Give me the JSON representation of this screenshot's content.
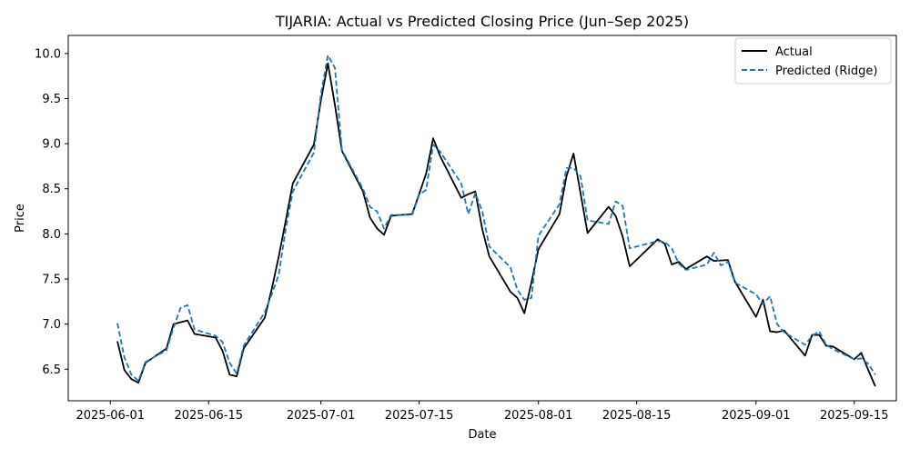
{
  "chart_data": {
    "type": "line",
    "title": "TIJARIA: Actual vs Predicted Closing Price (Jun–Sep 2025)",
    "xlabel": "Date",
    "ylabel": "Price",
    "xlim": [
      "2025-05-26",
      "2025-09-21"
    ],
    "ylim": [
      6.15,
      10.2
    ],
    "x_ticks": [
      "2025-06-01",
      "2025-06-15",
      "2025-07-01",
      "2025-07-15",
      "2025-08-01",
      "2025-08-15",
      "2025-09-01",
      "2025-09-15"
    ],
    "y_ticks": [
      6.5,
      7.0,
      7.5,
      8.0,
      8.5,
      9.0,
      9.5,
      10.0
    ],
    "grid": false,
    "legend_position": "top-right",
    "series": [
      {
        "name": "Actual",
        "color": "#000000",
        "style": "solid",
        "points": [
          [
            "2025-06-02",
            6.81
          ],
          [
            "2025-06-03",
            6.49
          ],
          [
            "2025-06-04",
            6.39
          ],
          [
            "2025-06-05",
            6.35
          ],
          [
            "2025-06-06",
            6.57
          ],
          [
            "2025-06-09",
            6.73
          ],
          [
            "2025-06-10",
            7.0
          ],
          [
            "2025-06-12",
            7.04
          ],
          [
            "2025-06-13",
            6.89
          ],
          [
            "2025-06-16",
            6.85
          ],
          [
            "2025-06-17",
            6.7
          ],
          [
            "2025-06-18",
            6.44
          ],
          [
            "2025-06-19",
            6.42
          ],
          [
            "2025-06-20",
            6.73
          ],
          [
            "2025-06-23",
            7.07
          ],
          [
            "2025-06-24",
            7.39
          ],
          [
            "2025-06-25",
            7.75
          ],
          [
            "2025-06-26",
            8.15
          ],
          [
            "2025-06-27",
            8.56
          ],
          [
            "2025-06-30",
            8.99
          ],
          [
            "2025-07-01",
            9.48
          ],
          [
            "2025-07-02",
            9.89
          ],
          [
            "2025-07-03",
            9.43
          ],
          [
            "2025-07-04",
            8.92
          ],
          [
            "2025-07-07",
            8.47
          ],
          [
            "2025-07-08",
            8.18
          ],
          [
            "2025-07-09",
            8.06
          ],
          [
            "2025-07-10",
            7.99
          ],
          [
            "2025-07-11",
            8.2
          ],
          [
            "2025-07-14",
            8.22
          ],
          [
            "2025-07-15",
            8.44
          ],
          [
            "2025-07-16",
            8.67
          ],
          [
            "2025-07-17",
            9.06
          ],
          [
            "2025-07-18",
            8.86
          ],
          [
            "2025-07-21",
            8.4
          ],
          [
            "2025-07-22",
            8.44
          ],
          [
            "2025-07-23",
            8.47
          ],
          [
            "2025-07-24",
            8.05
          ],
          [
            "2025-07-25",
            7.75
          ],
          [
            "2025-07-28",
            7.36
          ],
          [
            "2025-07-29",
            7.29
          ],
          [
            "2025-07-30",
            7.12
          ],
          [
            "2025-07-31",
            7.46
          ],
          [
            "2025-08-01",
            7.83
          ],
          [
            "2025-08-04",
            8.22
          ],
          [
            "2025-08-05",
            8.64
          ],
          [
            "2025-08-06",
            8.89
          ],
          [
            "2025-08-07",
            8.45
          ],
          [
            "2025-08-08",
            8.01
          ],
          [
            "2025-08-11",
            8.3
          ],
          [
            "2025-08-12",
            8.2
          ],
          [
            "2025-08-13",
            7.97
          ],
          [
            "2025-08-14",
            7.64
          ],
          [
            "2025-08-18",
            7.94
          ],
          [
            "2025-08-19",
            7.89
          ],
          [
            "2025-08-20",
            7.66
          ],
          [
            "2025-08-21",
            7.69
          ],
          [
            "2025-08-22",
            7.61
          ],
          [
            "2025-08-25",
            7.75
          ],
          [
            "2025-08-26",
            7.7
          ],
          [
            "2025-08-28",
            7.71
          ],
          [
            "2025-08-29",
            7.47
          ],
          [
            "2025-09-01",
            7.08
          ],
          [
            "2025-09-02",
            7.27
          ],
          [
            "2025-09-03",
            6.92
          ],
          [
            "2025-09-04",
            6.91
          ],
          [
            "2025-09-05",
            6.93
          ],
          [
            "2025-09-08",
            6.65
          ],
          [
            "2025-09-09",
            6.88
          ],
          [
            "2025-09-10",
            6.88
          ],
          [
            "2025-09-11",
            6.76
          ],
          [
            "2025-09-12",
            6.75
          ],
          [
            "2025-09-15",
            6.61
          ],
          [
            "2025-09-16",
            6.68
          ],
          [
            "2025-09-17",
            6.49
          ],
          [
            "2025-09-18",
            6.31
          ]
        ]
      },
      {
        "name": "Predicted (Ridge)",
        "color": "#1f77b4",
        "style": "dashed",
        "points": [
          [
            "2025-06-02",
            7.01
          ],
          [
            "2025-06-03",
            6.63
          ],
          [
            "2025-06-04",
            6.44
          ],
          [
            "2025-06-05",
            6.37
          ],
          [
            "2025-06-06",
            6.58
          ],
          [
            "2025-06-09",
            6.71
          ],
          [
            "2025-06-10",
            6.96
          ],
          [
            "2025-06-11",
            7.18
          ],
          [
            "2025-06-12",
            7.21
          ],
          [
            "2025-06-13",
            6.94
          ],
          [
            "2025-06-16",
            6.87
          ],
          [
            "2025-06-17",
            6.8
          ],
          [
            "2025-06-18",
            6.57
          ],
          [
            "2025-06-19",
            6.45
          ],
          [
            "2025-06-20",
            6.76
          ],
          [
            "2025-06-23",
            7.13
          ],
          [
            "2025-06-24",
            7.33
          ],
          [
            "2025-06-25",
            7.55
          ],
          [
            "2025-06-26",
            8.06
          ],
          [
            "2025-06-27",
            8.47
          ],
          [
            "2025-06-30",
            8.9
          ],
          [
            "2025-07-01",
            9.55
          ],
          [
            "2025-07-02",
            9.98
          ],
          [
            "2025-07-03",
            9.84
          ],
          [
            "2025-07-04",
            8.93
          ],
          [
            "2025-07-07",
            8.5
          ],
          [
            "2025-07-08",
            8.3
          ],
          [
            "2025-07-09",
            8.25
          ],
          [
            "2025-07-10",
            8.06
          ],
          [
            "2025-07-11",
            8.21
          ],
          [
            "2025-07-14",
            8.21
          ],
          [
            "2025-07-15",
            8.43
          ],
          [
            "2025-07-16",
            8.49
          ],
          [
            "2025-07-17",
            8.99
          ],
          [
            "2025-07-18",
            8.91
          ],
          [
            "2025-07-21",
            8.56
          ],
          [
            "2025-07-22",
            8.22
          ],
          [
            "2025-07-23",
            8.45
          ],
          [
            "2025-07-24",
            8.25
          ],
          [
            "2025-07-25",
            7.86
          ],
          [
            "2025-07-28",
            7.63
          ],
          [
            "2025-07-29",
            7.38
          ],
          [
            "2025-07-30",
            7.27
          ],
          [
            "2025-07-31",
            7.29
          ],
          [
            "2025-08-01",
            7.98
          ],
          [
            "2025-08-04",
            8.33
          ],
          [
            "2025-08-05",
            8.73
          ],
          [
            "2025-08-06",
            8.73
          ],
          [
            "2025-08-07",
            8.64
          ],
          [
            "2025-08-08",
            8.15
          ],
          [
            "2025-08-11",
            8.11
          ],
          [
            "2025-08-12",
            8.36
          ],
          [
            "2025-08-13",
            8.31
          ],
          [
            "2025-08-14",
            7.84
          ],
          [
            "2025-08-18",
            7.92
          ],
          [
            "2025-08-19",
            7.91
          ],
          [
            "2025-08-20",
            7.84
          ],
          [
            "2025-08-21",
            7.67
          ],
          [
            "2025-08-22",
            7.6
          ],
          [
            "2025-08-25",
            7.66
          ],
          [
            "2025-08-26",
            7.79
          ],
          [
            "2025-08-27",
            7.65
          ],
          [
            "2025-08-28",
            7.69
          ],
          [
            "2025-08-29",
            7.46
          ],
          [
            "2025-09-01",
            7.33
          ],
          [
            "2025-09-02",
            7.22
          ],
          [
            "2025-09-03",
            7.31
          ],
          [
            "2025-09-04",
            7.0
          ],
          [
            "2025-09-05",
            6.91
          ],
          [
            "2025-09-08",
            6.77
          ],
          [
            "2025-09-09",
            6.87
          ],
          [
            "2025-09-10",
            6.92
          ],
          [
            "2025-09-11",
            6.77
          ],
          [
            "2025-09-12",
            6.72
          ],
          [
            "2025-09-15",
            6.61
          ],
          [
            "2025-09-16",
            6.62
          ],
          [
            "2025-09-17",
            6.56
          ],
          [
            "2025-09-18",
            6.44
          ]
        ]
      }
    ]
  }
}
